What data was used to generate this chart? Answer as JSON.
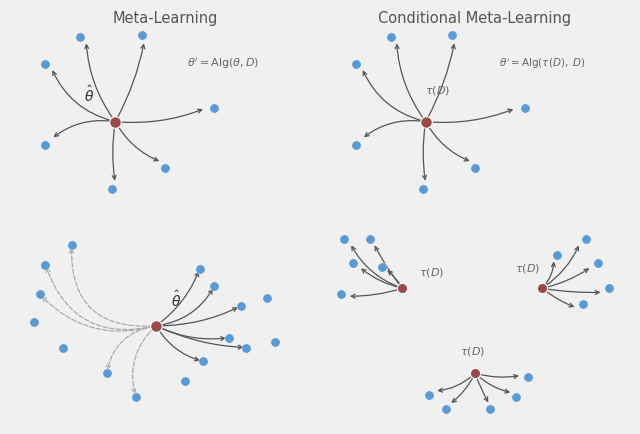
{
  "fig_bg": "#f0f0f0",
  "panel_bg": "#dcdce0",
  "center_color": "#9b4a4a",
  "dot_color": "#5b9bd5",
  "arrow_color": "#555555",
  "dashed_arrow_color": "#aaaaaa",
  "title_color": "#555555",
  "text_color": "#666666",
  "top_left_title": "Meta-Learning",
  "top_right_title": "Conditional Meta-Learning",
  "top_left_label": "$\\hat{\\theta}$",
  "top_right_label": "$\\tau(D)$",
  "top_left_eq": "$\\theta^{\\prime} = \\mathrm{Alg}(\\theta, D)$",
  "top_right_eq": "$\\theta^{\\prime} = \\mathrm{Alg}(\\tau(D),\\ D)$",
  "bottom_left_label": "$\\hat{\\theta}$",
  "tau_label": "$\\tau(D)$"
}
